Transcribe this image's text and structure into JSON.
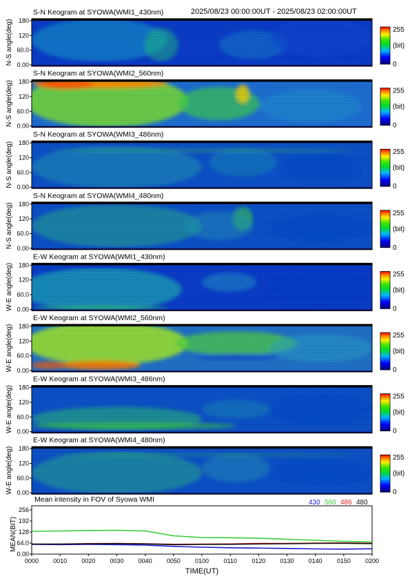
{
  "header": {
    "time_range": "2025/08/23 00:00:00UT - 2025/08/23 02:00:00UT"
  },
  "colorbar": {
    "max_label": "255",
    "unit_label": "(bit)",
    "min_label": "0"
  },
  "keogram_panels": [
    {
      "title": "S-N Keogram at SYOWA(WMI1_430nm)",
      "ylabel": "N-S angle(deg)",
      "yticks": [
        "180",
        "120",
        "60.0",
        "0.00"
      ]
    },
    {
      "title": "S-N Keogram at SYOWA(WMI2_560nm)",
      "ylabel": "N-S angle(deg)",
      "yticks": [
        "180",
        "120",
        "60.0",
        "0.00"
      ]
    },
    {
      "title": "S-N Keogram at SYOWA(WMI3_486nm)",
      "ylabel": "N-S angle(deg)",
      "yticks": [
        "180",
        "120",
        "60.0",
        "0.00"
      ]
    },
    {
      "title": "S-N Keogram at SYOWA(WMI4_480nm)",
      "ylabel": "N-S angle(deg)",
      "yticks": [
        "180",
        "120",
        "60.0",
        "0.00"
      ]
    },
    {
      "title": "E-W Keogram at SYOWA(WMI1_430nm)",
      "ylabel": "W-E angle(deg)",
      "yticks": [
        "180",
        "120",
        "60.0",
        "0.00"
      ]
    },
    {
      "title": "E-W Keogram at SYOWA(WMI2_560nm)",
      "ylabel": "W-E angle(deg)",
      "yticks": [
        "180",
        "120",
        "60.0",
        "0.00"
      ]
    },
    {
      "title": "E-W Keogram at SYOWA(WMI3_486nm)",
      "ylabel": "W-E angle(deg)",
      "yticks": [
        "180",
        "120",
        "60.0",
        "0.00"
      ]
    },
    {
      "title": "E-W Keogram at SYOWA(WMI4_480nm)",
      "ylabel": "W-E angle(deg)",
      "yticks": [
        "180",
        "120",
        "60.0",
        "0.00"
      ]
    }
  ],
  "chart_data": {
    "type": "line",
    "title": "Mean intensity in FOV of Syowa WMI",
    "xlabel": "TIME(UT)",
    "ylabel": "MEAN(BIT)",
    "x_tick_labels": [
      "0000",
      "0010",
      "0020",
      "0030",
      "0040",
      "0050",
      "0100",
      "0110",
      "0120",
      "0130",
      "0140",
      "0150",
      "0200"
    ],
    "y_tick_labels": [
      "256",
      "192",
      "128",
      "64.0",
      "0.00"
    ],
    "ylim": [
      0,
      256
    ],
    "x": [
      0,
      10,
      20,
      30,
      40,
      50,
      60,
      70,
      80,
      90,
      100,
      110,
      120
    ],
    "series": [
      {
        "name": "430",
        "color": "#1a1acc",
        "values": [
          56,
          55,
          56,
          55,
          52,
          45,
          40,
          37,
          35,
          33,
          30,
          29,
          31
        ]
      },
      {
        "name": "560",
        "color": "#33cc33",
        "values": [
          132,
          134,
          137,
          138,
          134,
          106,
          96,
          95,
          92,
          86,
          80,
          74,
          70
        ]
      },
      {
        "name": "486",
        "color": "#dd2222",
        "values": [
          58,
          58,
          61,
          62,
          60,
          57,
          58,
          59,
          62,
          62,
          64,
          65,
          63
        ]
      },
      {
        "name": "480",
        "color": "#111111",
        "values": [
          58,
          58,
          60,
          61,
          59,
          55,
          56,
          57,
          59,
          60,
          62,
          63,
          61
        ]
      }
    ]
  }
}
